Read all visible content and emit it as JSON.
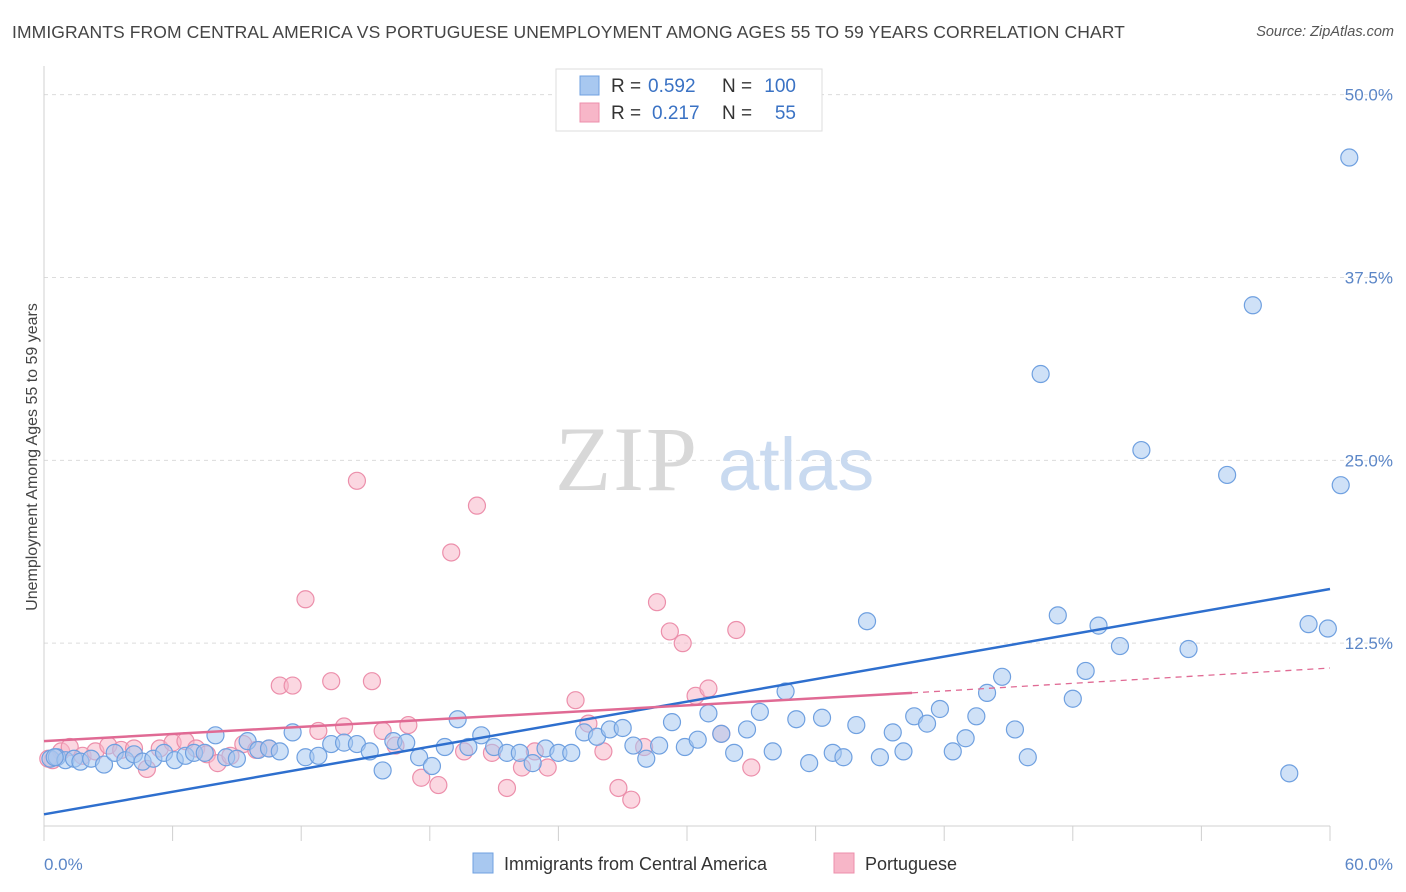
{
  "title": "IMMIGRANTS FROM CENTRAL AMERICA VS PORTUGUESE UNEMPLOYMENT AMONG AGES 55 TO 59 YEARS CORRELATION CHART",
  "source": "Source: ZipAtlas.com",
  "watermark": {
    "zip": "ZIP",
    "atlas": "atlas"
  },
  "chart_data": {
    "type": "scatter",
    "ylabel": "Unemployment Among Ages 55 to 59 years",
    "xlim": [
      0,
      60
    ],
    "ylim": [
      0,
      51
    ],
    "x_tick_labels": {
      "min": "0.0%",
      "max": "60.0%"
    },
    "y_ticks": [
      12.5,
      25.0,
      37.5,
      50.0
    ],
    "y_tick_labels": [
      "12.5%",
      "25.0%",
      "37.5%",
      "50.0%"
    ],
    "grid": "horizontal dashed",
    "legend": [
      {
        "r_label": "R =",
        "r_value": "0.592",
        "n_label": "N =",
        "n_value": "100",
        "color": "#a8c8f0"
      },
      {
        "r_label": "R =",
        "r_value": "0.217",
        "n_label": "N =",
        "n_value": "55",
        "color": "#f7b6c8"
      }
    ],
    "series": [
      {
        "name": "Immigrants from Central America",
        "color": "#6fa0e0",
        "fill": "#a8c8f0",
        "trend": {
          "x": [
            0,
            60
          ],
          "y": [
            0.8,
            16.2
          ],
          "color": "#2e6fce"
        },
        "points": [
          [
            0.3,
            4.6
          ],
          [
            0.6,
            4.7
          ],
          [
            1.0,
            4.5
          ],
          [
            1.4,
            4.6
          ],
          [
            1.7,
            4.4
          ],
          [
            2.2,
            4.6
          ],
          [
            2.8,
            4.2
          ],
          [
            3.3,
            5.0
          ],
          [
            3.8,
            4.5
          ],
          [
            4.2,
            4.9
          ],
          [
            4.6,
            4.4
          ],
          [
            5.1,
            4.6
          ],
          [
            5.6,
            5.0
          ],
          [
            6.1,
            4.5
          ],
          [
            6.6,
            4.8
          ],
          [
            7.0,
            5.0
          ],
          [
            7.5,
            5.0
          ],
          [
            8.0,
            6.2
          ],
          [
            8.5,
            4.7
          ],
          [
            9.0,
            4.6
          ],
          [
            9.5,
            5.8
          ],
          [
            10.0,
            5.2
          ],
          [
            10.5,
            5.3
          ],
          [
            11.0,
            5.1
          ],
          [
            11.6,
            6.4
          ],
          [
            12.2,
            4.7
          ],
          [
            12.8,
            4.8
          ],
          [
            13.4,
            5.6
          ],
          [
            14.0,
            5.7
          ],
          [
            14.6,
            5.6
          ],
          [
            15.2,
            5.1
          ],
          [
            15.8,
            3.8
          ],
          [
            16.3,
            5.8
          ],
          [
            16.9,
            5.7
          ],
          [
            17.5,
            4.7
          ],
          [
            18.1,
            4.1
          ],
          [
            18.7,
            5.4
          ],
          [
            19.3,
            7.3
          ],
          [
            19.8,
            5.4
          ],
          [
            20.4,
            6.2
          ],
          [
            21.0,
            5.4
          ],
          [
            21.6,
            5.0
          ],
          [
            22.2,
            5.0
          ],
          [
            22.8,
            4.3
          ],
          [
            23.4,
            5.3
          ],
          [
            24.0,
            5.0
          ],
          [
            24.6,
            5.0
          ],
          [
            25.2,
            6.4
          ],
          [
            25.8,
            6.1
          ],
          [
            26.4,
            6.6
          ],
          [
            27.0,
            6.7
          ],
          [
            27.5,
            5.5
          ],
          [
            28.1,
            4.6
          ],
          [
            28.7,
            5.5
          ],
          [
            29.3,
            7.1
          ],
          [
            29.9,
            5.4
          ],
          [
            30.5,
            5.9
          ],
          [
            31.0,
            7.7
          ],
          [
            31.6,
            6.3
          ],
          [
            32.2,
            5.0
          ],
          [
            32.8,
            6.6
          ],
          [
            33.4,
            7.8
          ],
          [
            34.0,
            5.1
          ],
          [
            34.6,
            9.2
          ],
          [
            35.1,
            7.3
          ],
          [
            35.7,
            4.3
          ],
          [
            36.3,
            7.4
          ],
          [
            36.8,
            5.0
          ],
          [
            37.3,
            4.7
          ],
          [
            37.9,
            6.9
          ],
          [
            38.4,
            14.0
          ],
          [
            39.0,
            4.7
          ],
          [
            39.6,
            6.4
          ],
          [
            40.1,
            5.1
          ],
          [
            40.6,
            7.5
          ],
          [
            41.2,
            7.0
          ],
          [
            41.8,
            8.0
          ],
          [
            42.4,
            5.1
          ],
          [
            43.0,
            6.0
          ],
          [
            43.5,
            7.5
          ],
          [
            44.0,
            9.1
          ],
          [
            44.7,
            10.2
          ],
          [
            45.3,
            6.6
          ],
          [
            45.9,
            4.7
          ],
          [
            46.5,
            30.9
          ],
          [
            47.3,
            14.4
          ],
          [
            48.0,
            8.7
          ],
          [
            48.6,
            10.6
          ],
          [
            49.2,
            13.7
          ],
          [
            50.2,
            12.3
          ],
          [
            51.2,
            25.7
          ],
          [
            53.4,
            12.1
          ],
          [
            55.2,
            24.0
          ],
          [
            56.4,
            35.6
          ],
          [
            58.1,
            3.6
          ],
          [
            59.0,
            13.8
          ],
          [
            59.9,
            13.5
          ],
          [
            60.5,
            23.3
          ],
          [
            60.9,
            45.7
          ],
          [
            0.5,
            4.7
          ]
        ]
      },
      {
        "name": "Portuguese",
        "color": "#ec8fab",
        "fill": "#f7b6c8",
        "trend": {
          "x": [
            0,
            40.5
          ],
          "y": [
            5.8,
            9.1
          ],
          "color": "#e06a94"
        },
        "trend_extension": {
          "x": [
            40.5,
            60
          ],
          "y": [
            9.1,
            10.8
          ]
        },
        "points": [
          [
            0.4,
            4.5
          ],
          [
            0.8,
            5.1
          ],
          [
            1.2,
            5.4
          ],
          [
            1.8,
            4.8
          ],
          [
            2.4,
            5.1
          ],
          [
            3.0,
            5.5
          ],
          [
            3.6,
            5.2
          ],
          [
            4.2,
            5.3
          ],
          [
            4.8,
            3.9
          ],
          [
            5.4,
            5.3
          ],
          [
            6.0,
            5.7
          ],
          [
            6.6,
            5.8
          ],
          [
            7.1,
            5.3
          ],
          [
            7.6,
            4.9
          ],
          [
            8.1,
            4.3
          ],
          [
            8.7,
            4.8
          ],
          [
            9.3,
            5.6
          ],
          [
            9.9,
            5.2
          ],
          [
            10.5,
            5.3
          ],
          [
            11.0,
            9.6
          ],
          [
            11.6,
            9.6
          ],
          [
            12.2,
            15.5
          ],
          [
            12.8,
            6.5
          ],
          [
            13.4,
            9.9
          ],
          [
            14.0,
            6.8
          ],
          [
            14.6,
            23.6
          ],
          [
            15.3,
            9.9
          ],
          [
            15.8,
            6.5
          ],
          [
            16.4,
            5.5
          ],
          [
            17.0,
            6.9
          ],
          [
            17.6,
            3.3
          ],
          [
            18.4,
            2.8
          ],
          [
            19.0,
            18.7
          ],
          [
            19.6,
            5.1
          ],
          [
            20.2,
            21.9
          ],
          [
            20.9,
            5.0
          ],
          [
            21.6,
            2.6
          ],
          [
            22.3,
            4.0
          ],
          [
            22.9,
            5.1
          ],
          [
            23.5,
            4.0
          ],
          [
            24.8,
            8.6
          ],
          [
            25.4,
            7.0
          ],
          [
            26.1,
            5.1
          ],
          [
            26.8,
            2.6
          ],
          [
            27.4,
            1.8
          ],
          [
            28.0,
            5.4
          ],
          [
            28.6,
            15.3
          ],
          [
            29.2,
            13.3
          ],
          [
            29.8,
            12.5
          ],
          [
            30.4,
            8.9
          ],
          [
            31.0,
            9.4
          ],
          [
            31.6,
            6.3
          ],
          [
            32.3,
            13.4
          ],
          [
            33.0,
            4.0
          ],
          [
            0.2,
            4.6
          ]
        ]
      }
    ]
  },
  "bottom_legend": [
    "Immigrants from Central America",
    "Portuguese"
  ]
}
